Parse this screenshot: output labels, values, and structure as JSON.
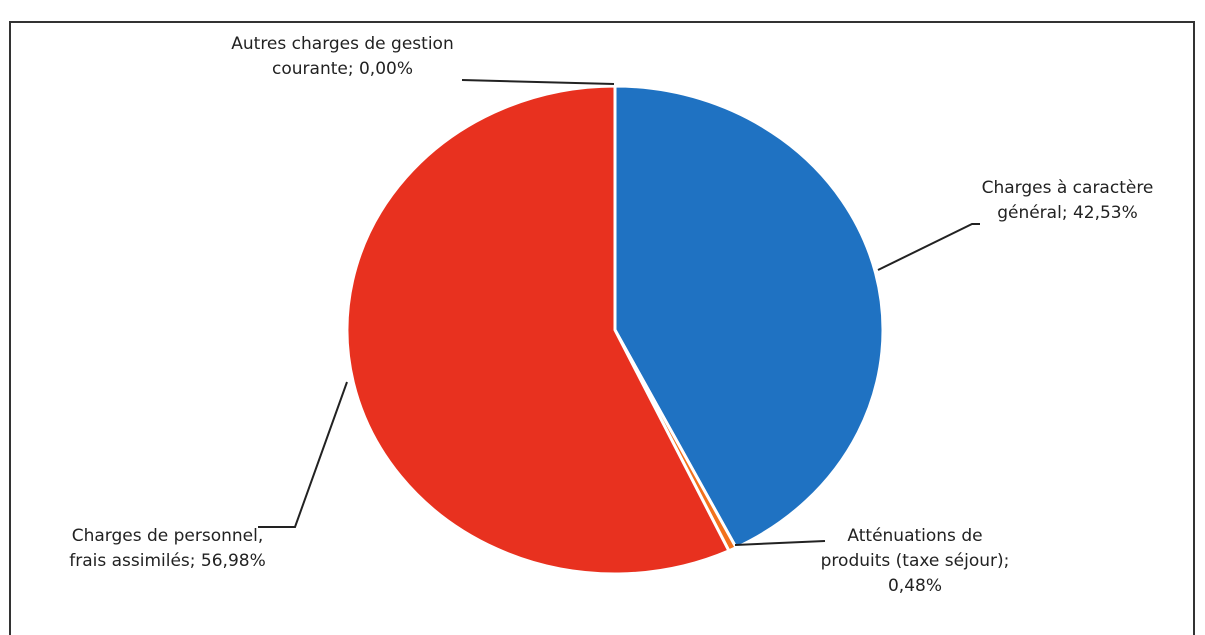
{
  "chart_data": {
    "type": "pie",
    "labels": [
      "Charges à caractère général; 42,53%",
      "Atténuations de produits (taxe séjour); 0,48%",
      "Charges de personnel, frais assimilés; 56,98%",
      "Autres charges de gestion courante; 0,00%"
    ],
    "values": [
      42.53,
      0.48,
      56.98,
      0.0
    ],
    "colors": [
      "#1f72c2",
      "#f2711c",
      "#e8311f",
      "#c0504d"
    ]
  }
}
